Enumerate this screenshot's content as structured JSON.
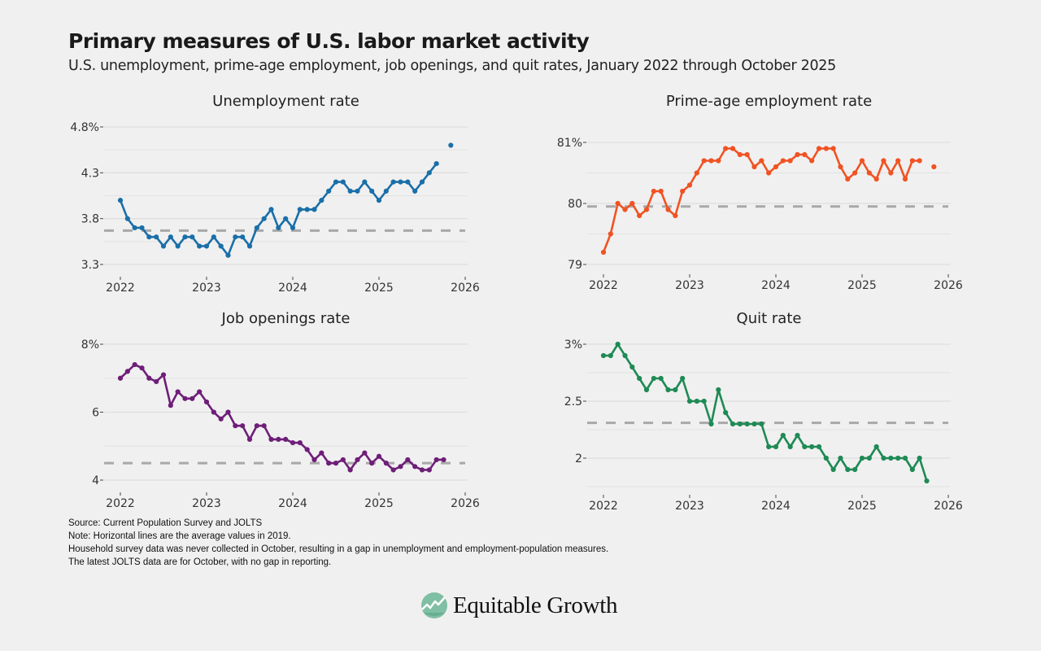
{
  "header": {
    "title": "Primary measures of U.S. labor market activity",
    "subtitle": "U.S. unemployment, prime-age employment, job openings, and quit rates, January 2022 through October 2025"
  },
  "notes": [
    "Source: Current Population Survey and JOLTS",
    "Note: Horizontal lines are the average values in 2019.",
    "Household survey data was never collected in October, resulting in a gap in unemployment and employment-population measures.",
    "The latest JOLTS data are for October, with no gap in reporting."
  ],
  "logo": {
    "text": "Equitable Growth",
    "icon": "rising-line-chart-circle-icon"
  },
  "chart_data": [
    {
      "id": "unemployment",
      "type": "line",
      "title": "Unemployment rate",
      "color": "#1a6fa8",
      "xlabel": "",
      "ylabel": "",
      "x_start": "2022-01",
      "x_ticks": [
        "2022",
        "2023",
        "2024",
        "2025",
        "2026"
      ],
      "xlim": [
        2022,
        2026
      ],
      "ylim": [
        3.3,
        4.8
      ],
      "y_ticks": [
        3.3,
        3.8,
        4.3,
        4.8
      ],
      "y_tick_labels": [
        "3.3",
        "3.8",
        "4.3",
        "4.8%"
      ],
      "y_minor": [
        3.55,
        4.05,
        4.55
      ],
      "reference_2019": 3.67,
      "grid": true,
      "values": [
        4.0,
        3.8,
        3.7,
        3.7,
        3.6,
        3.6,
        3.5,
        3.6,
        3.5,
        3.6,
        3.6,
        3.5,
        3.5,
        3.6,
        3.5,
        3.4,
        3.6,
        3.6,
        3.5,
        3.7,
        3.8,
        3.9,
        3.7,
        3.8,
        3.7,
        3.9,
        3.9,
        3.9,
        4.0,
        4.1,
        4.2,
        4.2,
        4.1,
        4.1,
        4.2,
        4.1,
        4.0,
        4.1,
        4.2,
        4.2,
        4.2,
        4.1,
        4.2,
        4.3,
        4.4,
        null,
        4.6
      ]
    },
    {
      "id": "prime-age-employment",
      "type": "line",
      "title": "Prime-age employment rate",
      "color": "#f05323",
      "xlabel": "",
      "ylabel": "",
      "x_start": "2022-01",
      "x_ticks": [
        "2022",
        "2023",
        "2024",
        "2025",
        "2026"
      ],
      "xlim": [
        2022,
        2026
      ],
      "ylim": [
        79,
        81
      ],
      "y_ticks": [
        79,
        80,
        81
      ],
      "y_tick_labels": [
        "79",
        "80",
        "81%"
      ],
      "y_minor": [
        79.5,
        80.5
      ],
      "reference_2019": 79.95,
      "grid": true,
      "values": [
        79.2,
        79.5,
        80.0,
        79.9,
        80.0,
        79.8,
        79.9,
        80.2,
        80.2,
        79.9,
        79.8,
        80.2,
        80.3,
        80.5,
        80.7,
        80.7,
        80.7,
        80.9,
        80.9,
        80.8,
        80.8,
        80.6,
        80.7,
        80.5,
        80.6,
        80.7,
        80.7,
        80.8,
        80.8,
        80.7,
        80.9,
        80.9,
        80.9,
        80.6,
        80.4,
        80.5,
        80.7,
        80.5,
        80.4,
        80.7,
        80.5,
        80.7,
        80.4,
        80.7,
        80.7,
        null,
        80.6
      ]
    },
    {
      "id": "job-openings",
      "type": "line",
      "title": "Job openings rate",
      "color": "#6e1e78",
      "xlabel": "",
      "ylabel": "",
      "x_start": "2022-01",
      "x_ticks": [
        "2022",
        "2023",
        "2024",
        "2025",
        "2026"
      ],
      "xlim": [
        2022,
        2026
      ],
      "ylim": [
        4,
        8
      ],
      "y_ticks": [
        4,
        6,
        8
      ],
      "y_tick_labels": [
        "4",
        "6",
        "8%"
      ],
      "y_minor": [
        5,
        7
      ],
      "reference_2019": 4.5,
      "grid": true,
      "values": [
        7.0,
        7.2,
        7.4,
        7.3,
        7.0,
        6.9,
        7.1,
        6.2,
        6.6,
        6.4,
        6.4,
        6.6,
        6.3,
        6.0,
        5.8,
        6.0,
        5.6,
        5.6,
        5.2,
        5.6,
        5.6,
        5.2,
        5.2,
        5.2,
        5.1,
        5.1,
        4.9,
        4.6,
        4.8,
        4.5,
        4.5,
        4.6,
        4.3,
        4.6,
        4.8,
        4.5,
        4.7,
        4.5,
        4.3,
        4.4,
        4.6,
        4.4,
        4.3,
        4.3,
        4.6,
        4.6
      ]
    },
    {
      "id": "quit-rate",
      "type": "line",
      "title": "Quit rate",
      "color": "#1f8a55",
      "xlabel": "",
      "ylabel": "",
      "x_start": "2022-01",
      "x_ticks": [
        "2022",
        "2023",
        "2024",
        "2025",
        "2026"
      ],
      "xlim": [
        2022,
        2026
      ],
      "ylim": [
        1.75,
        3
      ],
      "y_ticks": [
        2,
        2.5,
        3
      ],
      "y_tick_labels": [
        "2",
        "2.5",
        "3%"
      ],
      "y_minor": [
        1.75,
        2.25,
        2.75
      ],
      "reference_2019": 2.31,
      "grid": true,
      "values": [
        2.9,
        2.9,
        3.0,
        2.9,
        2.8,
        2.7,
        2.6,
        2.7,
        2.7,
        2.6,
        2.6,
        2.7,
        2.5,
        2.5,
        2.5,
        2.3,
        2.6,
        2.4,
        2.3,
        2.3,
        2.3,
        2.3,
        2.3,
        2.1,
        2.1,
        2.2,
        2.1,
        2.2,
        2.1,
        2.1,
        2.1,
        2.0,
        1.9,
        2.0,
        1.9,
        1.9,
        2.0,
        2.0,
        2.1,
        2.0,
        2.0,
        2.0,
        2.0,
        1.9,
        2.0,
        1.8
      ]
    }
  ]
}
